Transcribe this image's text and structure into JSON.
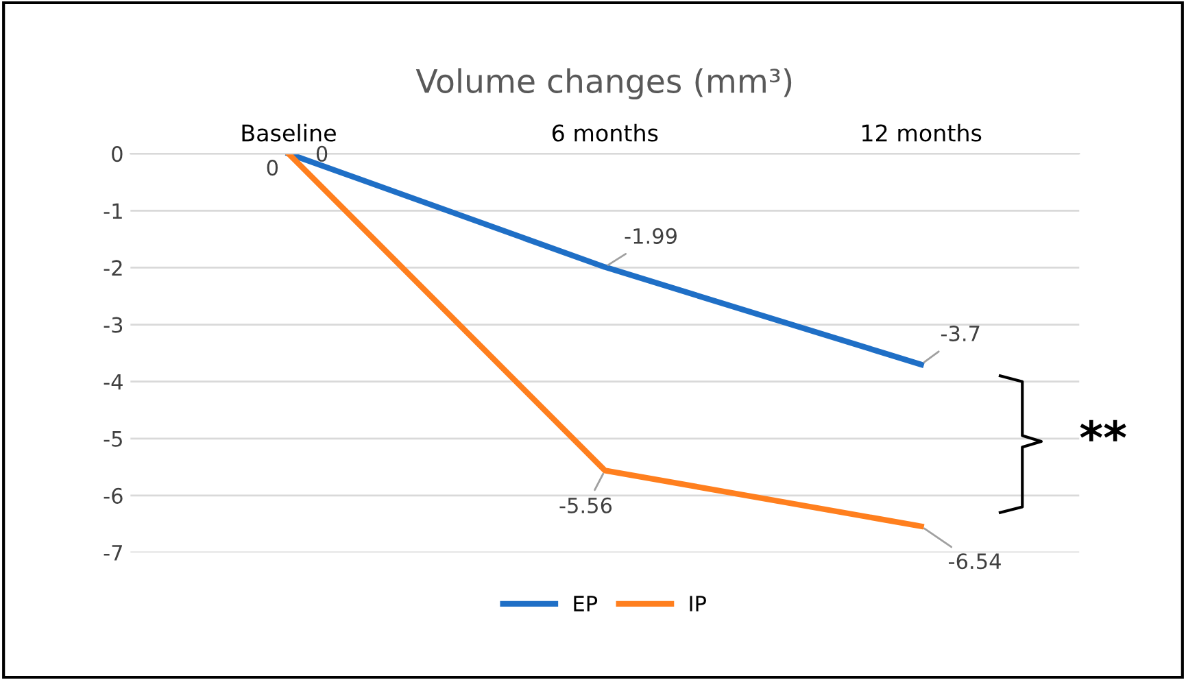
{
  "chart_data": {
    "type": "line",
    "title": "Volume changes (mm³)",
    "categories": [
      "Baseline",
      "6 months",
      "12 months"
    ],
    "series": [
      {
        "name": "EP",
        "color": "#1f6fc6",
        "values": [
          0,
          -1.99,
          -3.7
        ]
      },
      {
        "name": "IP",
        "color": "#ff7f1e",
        "values": [
          0,
          -5.56,
          -6.54
        ]
      }
    ],
    "ylim": [
      -7,
      0
    ],
    "yticks": [
      0,
      -1,
      -2,
      -3,
      -4,
      -5,
      -6,
      -7
    ],
    "grid": "y",
    "legend": "bottom",
    "data_labels": true,
    "marker": "none",
    "line_style": "solid",
    "annotations": [
      "**"
    ]
  }
}
